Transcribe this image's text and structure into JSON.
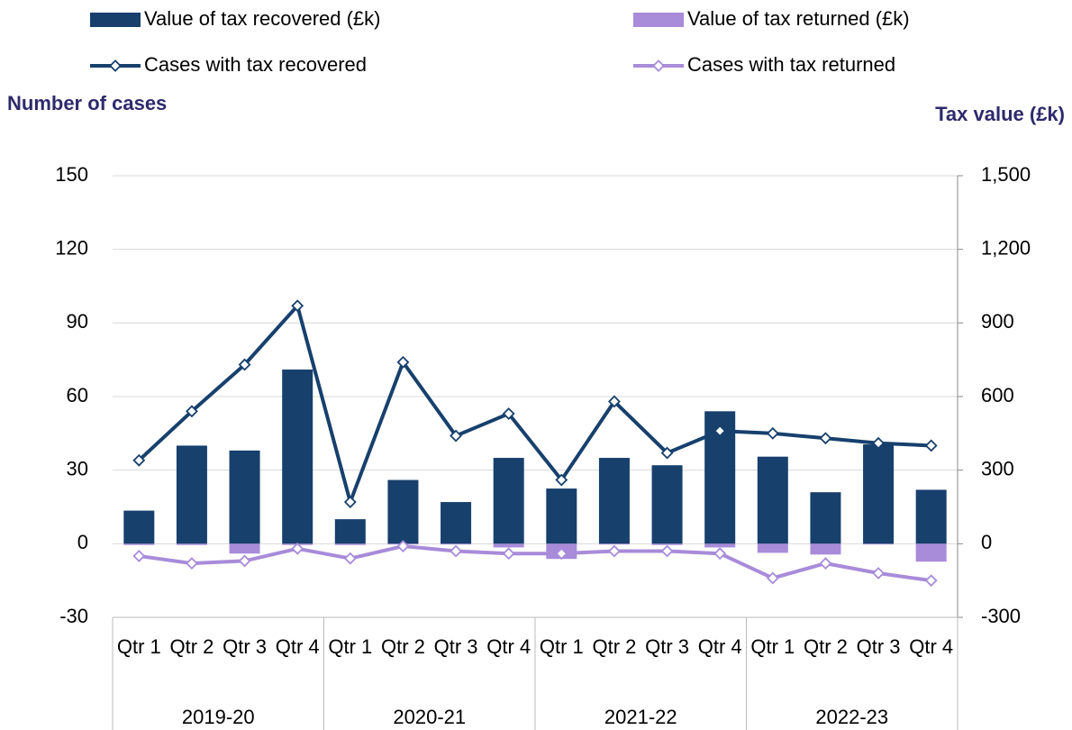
{
  "chart_data": {
    "type": "combo",
    "y_label": "Number of cases",
    "y2_label": "Tax value (£k)",
    "categories": [
      "Qtr 1",
      "Qtr 2",
      "Qtr 3",
      "Qtr 4",
      "Qtr 1",
      "Qtr 2",
      "Qtr 3",
      "Qtr 4",
      "Qtr 1",
      "Qtr 2",
      "Qtr 3",
      "Qtr 4",
      "Qtr 1",
      "Qtr 2",
      "Qtr 3",
      "Qtr 4"
    ],
    "groups": [
      {
        "label": "2019-20",
        "size": 4
      },
      {
        "label": "2020-21",
        "size": 4
      },
      {
        "label": "2021-22",
        "size": 4
      },
      {
        "label": "2022-23",
        "size": 4
      }
    ],
    "ylim": [
      -30,
      150
    ],
    "yticks": [
      -30,
      0,
      30,
      60,
      90,
      120,
      150
    ],
    "y2lim": [
      -300,
      1500
    ],
    "y2ticks": [
      -300,
      0,
      300,
      600,
      900,
      {
        "value": 1200,
        "label": "1,200"
      },
      {
        "value": 1500,
        "label": "1,500"
      }
    ],
    "grid": true,
    "legend": "top",
    "series": [
      {
        "name": "Value of tax recovered (£k)",
        "type": "bar",
        "axis": "y2",
        "color": "#17406d",
        "values": [
          135,
          400,
          380,
          710,
          100,
          260,
          170,
          350,
          225,
          350,
          320,
          540,
          355,
          210,
          405,
          220
        ]
      },
      {
        "name": "Value of tax returned (£k)",
        "type": "bar",
        "axis": "y2",
        "color": "#a88bd9",
        "values": [
          -5,
          -5,
          -40,
          -5,
          -5,
          -3,
          -3,
          -15,
          -62,
          -3,
          -5,
          -15,
          -37,
          -44,
          -3,
          -73
        ]
      },
      {
        "name": "Cases with tax recovered",
        "type": "line",
        "axis": "y",
        "color": "#17406d",
        "values": [
          34,
          54,
          73,
          97,
          17,
          74,
          44,
          53,
          26,
          58,
          37,
          46,
          45,
          43,
          41,
          40
        ]
      },
      {
        "name": "Cases with tax returned",
        "type": "line",
        "axis": "y",
        "color": "#a88bd9",
        "values": [
          -5,
          -8,
          -7,
          -2,
          -6,
          -1,
          -3,
          -4,
          -4,
          -3,
          -3,
          -4,
          -14,
          -8,
          -12,
          -15
        ]
      }
    ]
  }
}
